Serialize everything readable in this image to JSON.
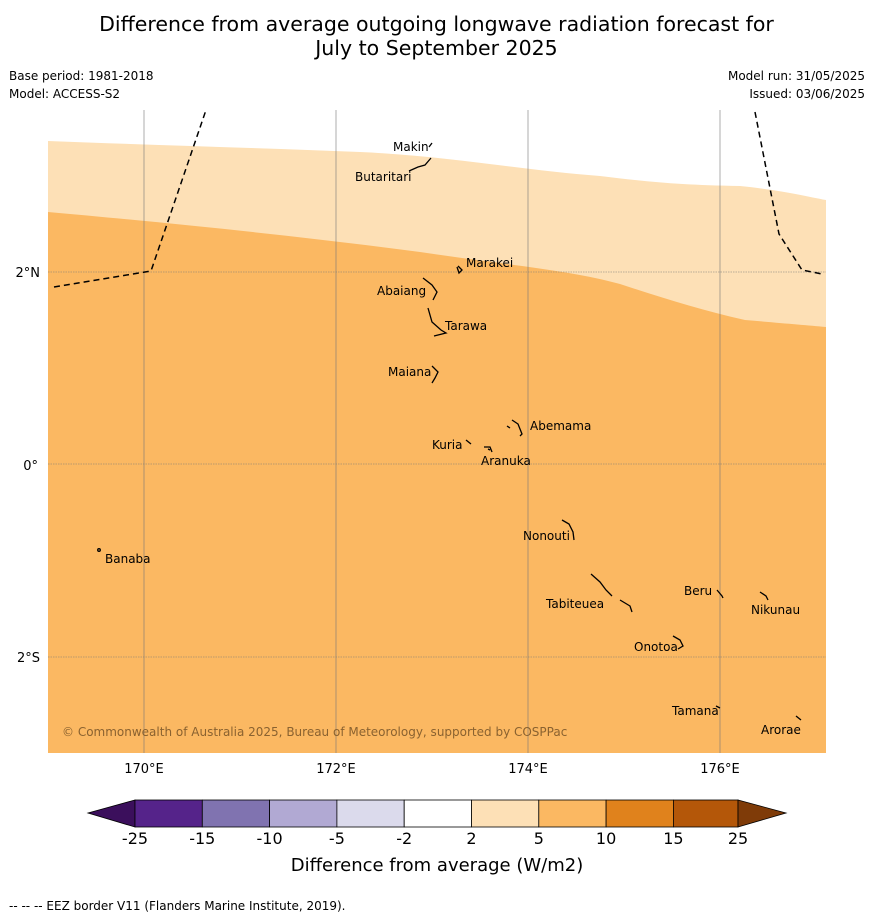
{
  "header": {
    "title_line1": "Difference from average outgoing longwave radiation forecast for",
    "title_line2": "July to September 2025",
    "base_period": "Base period: 1981-2018",
    "model": "Model: ACCESS-S2",
    "model_run": "Model run: 31/05/2025",
    "issued": "Issued: 03/06/2025"
  },
  "map": {
    "lat_labels": [
      "2°N",
      "0°",
      "2°S"
    ],
    "lon_labels": [
      "170°E",
      "172°E",
      "174°E",
      "176°E"
    ],
    "copyright": "© Commonwealth of Australia 2025, Bureau of Meteorology, supported by COSPPac",
    "place_names": {
      "makin": "Makin",
      "butaritari": "Butaritari",
      "marakei": "Marakei",
      "abaiang": "Abaiang",
      "tarawa": "Tarawa",
      "maiana": "Maiana",
      "abemama": "Abemama",
      "kuria": "Kuria",
      "aranuka": "Aranuka",
      "nonouti": "Nonouti",
      "banaba": "Banaba",
      "beru": "Beru",
      "tabiteuea": "Tabiteuea",
      "nikunau": "Nikunau",
      "onotoa": "Onotoa",
      "tamana": "Tamana",
      "arorae": "Arorae"
    },
    "shading_bands": [
      "2 to 5",
      "5 to 10"
    ],
    "colors": {
      "band_2_5": "#fde0b6",
      "band_5_10": "#fbb862"
    }
  },
  "colorbar": {
    "tick_labels": [
      "-25",
      "-15",
      "-10",
      "-5",
      "-2",
      "2",
      "5",
      "10",
      "15",
      "25"
    ],
    "label": "Difference from average (W/m2)",
    "colors": [
      "#3b0f5c",
      "#55238a",
      "#8073b0",
      "#b1a9d3",
      "#dbdaec",
      "#ffffff",
      "#fde0b6",
      "#fbb862",
      "#e0821c",
      "#b45709",
      "#7f3b08"
    ]
  },
  "footnote": "--  --  -- EEZ border V11 (Flanders Marine Institute, 2019)."
}
